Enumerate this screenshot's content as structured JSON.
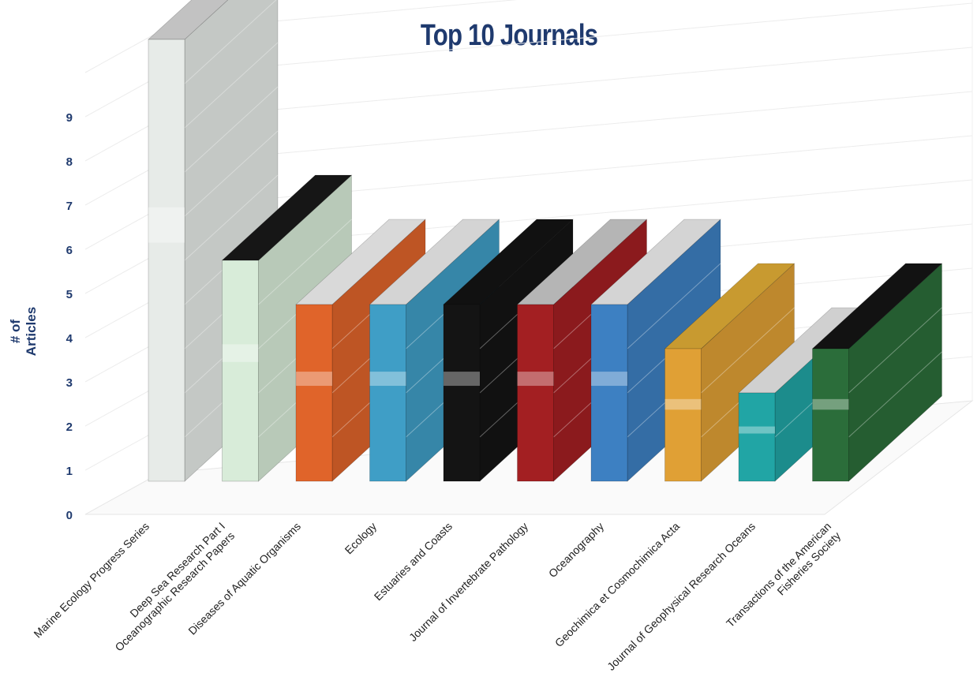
{
  "chart_data": {
    "type": "bar",
    "title": "Top 10 Journals",
    "ylabel": "# of Articles",
    "xlabel": "",
    "ylim": [
      0,
      10
    ],
    "yticks": [
      0,
      1,
      2,
      3,
      4,
      5,
      6,
      7,
      8,
      9
    ],
    "grid": true,
    "categories": [
      "Marine Ecology Progress Series",
      "Deep Sea Research Part I Oceanographic Research Papers",
      "Diseases of Aquatic Organisms",
      "Ecology",
      "Estuaries and Coasts",
      "Journal of Invertebrate Pathology",
      "Oceanography",
      "Geochimica et Cosmochimica Acta",
      "Journal of Geophysical Research Oceans",
      "Transactions of the American Fisheries Society"
    ],
    "values": [
      10,
      5,
      4,
      4,
      4,
      4,
      4,
      3,
      2,
      3
    ],
    "bar_colors": [
      "#e7ebe8",
      "#d8ecd9",
      "#e0642a",
      "#3f9ec6",
      "#141414",
      "#a31f22",
      "#3d80c2",
      "#e0a035",
      "#21a5a5",
      "#2b6d3a"
    ],
    "top_colors": [
      "#c2c2c2",
      "#161616",
      "#d9d9d9",
      "#d4d4d4",
      "#111111",
      "#b5b5b5",
      "#d4d4d4",
      "#c89a30",
      "#d0d0d0",
      "#121212"
    ]
  }
}
